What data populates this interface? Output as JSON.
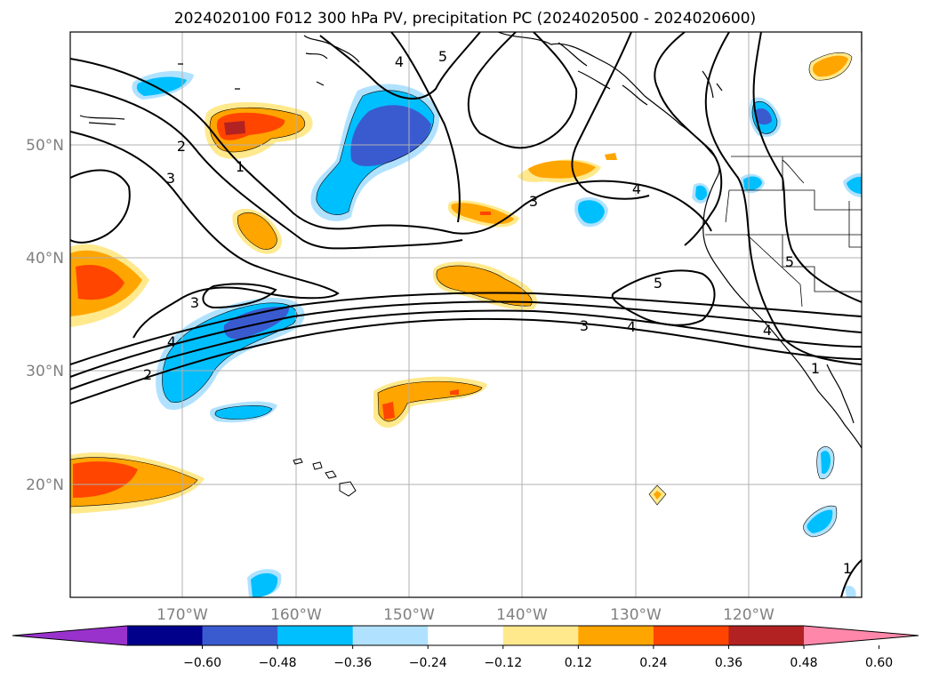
{
  "title": "2024020100 F012 300 hPa PV, precipitation PC (2024020500 - 2024020600)",
  "map": {
    "lon_range": [
      -180,
      -110
    ],
    "lat_range": [
      10,
      60
    ],
    "lat_ticks": [
      "50°N",
      "40°N",
      "30°N",
      "20°N"
    ],
    "lon_ticks": [
      "170°W",
      "160°W",
      "150°W",
      "140°W",
      "130°W",
      "120°W"
    ],
    "grid": true
  },
  "colorbar": {
    "ticks": [
      "−0.60",
      "−0.48",
      "−0.36",
      "−0.24",
      "−0.12",
      "0.12",
      "0.24",
      "0.36",
      "0.48",
      "0.60"
    ],
    "colors": [
      "#9932cc",
      "#00008b",
      "#3a5bd0",
      "#00bfff",
      "#b0e2ff",
      "#ffffff",
      "#ffe98c",
      "#ffa500",
      "#ff4500",
      "#b22222",
      "#ff88aa"
    ],
    "extend": "both"
  },
  "pv_contour_labels": [
    "5",
    "4",
    "3",
    "2",
    "1",
    "4",
    "5",
    "3",
    "4",
    "3",
    "2",
    "4",
    "3",
    "4",
    "5",
    "1",
    "1"
  ],
  "palette": {
    "pos1": "#ffe98c",
    "pos2": "#ffa500",
    "pos3": "#ff4500",
    "pos4": "#b22222",
    "neg1": "#b0e2ff",
    "neg2": "#00bfff",
    "neg3": "#3a5bd0"
  }
}
